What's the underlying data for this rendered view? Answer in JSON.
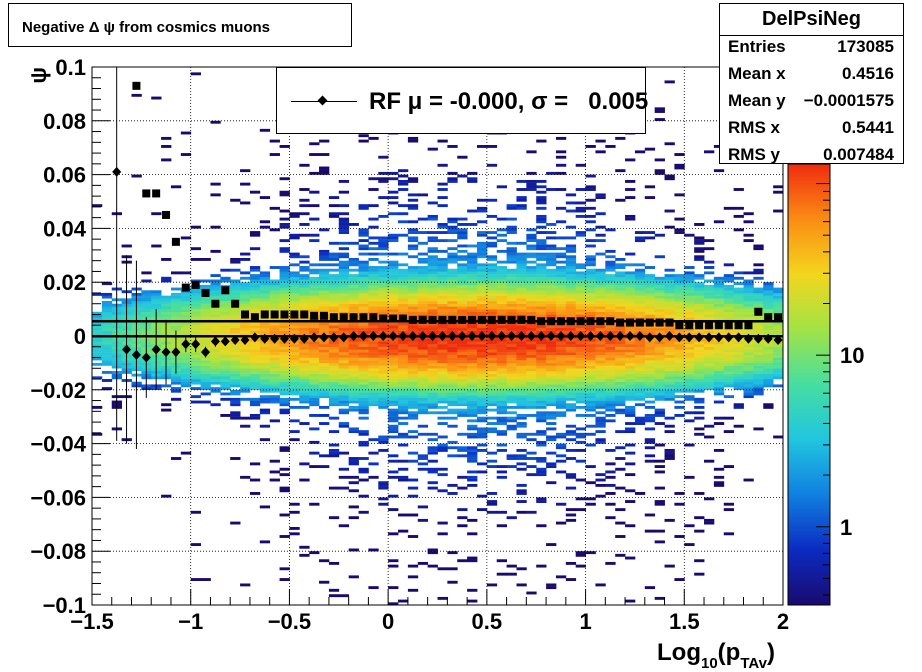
{
  "title": "Negative Δ ψ from cosmics muons",
  "stats": {
    "name": "DelPsiNeg",
    "rows": [
      {
        "key": "Entries",
        "value": "173085"
      },
      {
        "key": "Mean x",
        "value": "0.4516"
      },
      {
        "key": "Mean y",
        "value": "−0.0001575"
      },
      {
        "key": "RMS x",
        "value": "0.5441"
      },
      {
        "key": "RMS y",
        "value": "0.007484"
      }
    ]
  },
  "legend": {
    "label": "RF μ = -0.000, σ =   0.005"
  },
  "chart_data": {
    "type": "heatmap",
    "title": "Negative Δ ψ from cosmics muons",
    "xlabel": "Log10(pTAv)",
    "xlabel_parts": {
      "base": "Log",
      "sub1": "10",
      "open": "(p",
      "sub2": "TAv",
      "close": ")"
    },
    "ylabel": "ψ",
    "xlim": [
      -1.5,
      2
    ],
    "ylim": [
      -0.1,
      0.1
    ],
    "x_ticks": [
      "−1.5",
      "−1",
      "−0.5",
      "0",
      "0.5",
      "1",
      "1.5",
      "2"
    ],
    "x_tick_values": [
      -1.5,
      -1,
      -0.5,
      0,
      0.5,
      1,
      1.5,
      2
    ],
    "y_ticks": [
      "−0.1",
      "−0.08",
      "−0.06",
      "−0.04",
      "−0.02",
      "0",
      "0.02",
      "0.04",
      "0.06",
      "0.08",
      "0.1"
    ],
    "y_tick_values": [
      -0.1,
      -0.08,
      -0.06,
      -0.04,
      -0.02,
      0,
      0.02,
      0.04,
      0.06,
      0.08,
      0.1
    ],
    "grid": true,
    "z_scale": "log",
    "z_ticks": [
      "1",
      "10"
    ],
    "z_tick_values": [
      1,
      10
    ],
    "zlim": [
      0.35,
      130
    ],
    "density": {
      "x_mean": 0.4516,
      "x_rms": 0.5441,
      "y_mean": -0.0001575,
      "y_rms": 0.007484,
      "entries": 173085
    },
    "colors": {
      "palette": [
        "#1a0a6e",
        "#0b2bc0",
        "#1180e0",
        "#21c5df",
        "#46dea1",
        "#a2e344",
        "#f2d61e",
        "#fb8c14",
        "#ef2c0f"
      ]
    },
    "series": [
      {
        "name": "mean",
        "marker": "diamond",
        "points": [
          {
            "x": -1.375,
            "y": 0.061,
            "err": 0.1
          },
          {
            "x": -1.325,
            "y": -0.005,
            "err": 0.035
          },
          {
            "x": -1.275,
            "y": -0.007,
            "err": 0.035
          },
          {
            "x": -1.225,
            "y": -0.008,
            "err": 0.015
          },
          {
            "x": -1.175,
            "y": -0.005,
            "err": 0.015
          },
          {
            "x": -1.125,
            "y": -0.006,
            "err": 0.012
          },
          {
            "x": -1.075,
            "y": -0.006,
            "err": 0.008
          },
          {
            "x": -1.025,
            "y": -0.003,
            "err": 0.003
          },
          {
            "x": -0.975,
            "y": -0.003,
            "err": 0.003
          },
          {
            "x": -0.925,
            "y": -0.006,
            "err": 0.002
          },
          {
            "x": -0.875,
            "y": -0.002,
            "err": 0.002
          },
          {
            "x": -0.825,
            "y": -0.002,
            "err": 0.001
          },
          {
            "x": -0.775,
            "y": -0.0015,
            "err": 0.001
          },
          {
            "x": -0.725,
            "y": -0.0015,
            "err": 0.001
          },
          {
            "x": -0.675,
            "y": -0.0005,
            "err": 0.001
          },
          {
            "x": -0.625,
            "y": -0.001,
            "err": 0.001
          },
          {
            "x": -0.575,
            "y": -0.001,
            "err": 0.001
          },
          {
            "x": -0.525,
            "y": -0.001,
            "err": 0.001
          },
          {
            "x": -0.475,
            "y": -0.001,
            "err": 0.001
          },
          {
            "x": -0.425,
            "y": -0.001,
            "err": 0.001
          },
          {
            "x": -0.375,
            "y": -0.0005,
            "err": 0.001
          },
          {
            "x": -0.325,
            "y": -0.0005,
            "err": 0.001
          },
          {
            "x": -0.275,
            "y": -0.0005,
            "err": 0.001
          },
          {
            "x": -0.225,
            "y": -0.0005,
            "err": 0.001
          },
          {
            "x": -0.175,
            "y": 0,
            "err": 0.001
          },
          {
            "x": -0.125,
            "y": 0,
            "err": 0.001
          },
          {
            "x": -0.075,
            "y": 0,
            "err": 0.001
          },
          {
            "x": -0.025,
            "y": 0,
            "err": 0.001
          },
          {
            "x": 0.025,
            "y": 0,
            "err": 0.001
          },
          {
            "x": 0.075,
            "y": 0,
            "err": 0.001
          },
          {
            "x": 0.125,
            "y": 0,
            "err": 0.001
          },
          {
            "x": 0.175,
            "y": 0,
            "err": 0.001
          },
          {
            "x": 0.225,
            "y": 0,
            "err": 0.001
          },
          {
            "x": 0.275,
            "y": 0,
            "err": 0.001
          },
          {
            "x": 0.325,
            "y": 0,
            "err": 0.001
          },
          {
            "x": 0.375,
            "y": 0,
            "err": 0.001
          },
          {
            "x": 0.425,
            "y": 0,
            "err": 0.001
          },
          {
            "x": 0.475,
            "y": 0,
            "err": 0.001
          },
          {
            "x": 0.525,
            "y": 0,
            "err": 0.001
          },
          {
            "x": 0.575,
            "y": 0,
            "err": 0.001
          },
          {
            "x": 0.625,
            "y": 0,
            "err": 0.001
          },
          {
            "x": 0.675,
            "y": 0,
            "err": 0.001
          },
          {
            "x": 0.725,
            "y": 0,
            "err": 0.001
          },
          {
            "x": 0.775,
            "y": 0,
            "err": 0.001
          },
          {
            "x": 0.825,
            "y": 0,
            "err": 0.001
          },
          {
            "x": 0.875,
            "y": 0,
            "err": 0.001
          },
          {
            "x": 0.925,
            "y": 0,
            "err": 0.001
          },
          {
            "x": 0.975,
            "y": 0,
            "err": 0.001
          },
          {
            "x": 1.025,
            "y": 0,
            "err": 0.001
          },
          {
            "x": 1.075,
            "y": 0,
            "err": 0.001
          },
          {
            "x": 1.125,
            "y": 0,
            "err": 0.001
          },
          {
            "x": 1.175,
            "y": 0,
            "err": 0.001
          },
          {
            "x": 1.225,
            "y": 0,
            "err": 0.001
          },
          {
            "x": 1.275,
            "y": 0,
            "err": 0.001
          },
          {
            "x": 1.325,
            "y": -0.0005,
            "err": 0.001
          },
          {
            "x": 1.375,
            "y": -0.0005,
            "err": 0.001
          },
          {
            "x": 1.425,
            "y": 0,
            "err": 0.001
          },
          {
            "x": 1.475,
            "y": -0.0005,
            "err": 0.001
          },
          {
            "x": 1.525,
            "y": -0.0005,
            "err": 0.001
          },
          {
            "x": 1.575,
            "y": -0.0005,
            "err": 0.001
          },
          {
            "x": 1.625,
            "y": -0.0005,
            "err": 0.001
          },
          {
            "x": 1.675,
            "y": -0.0005,
            "err": 0.001
          },
          {
            "x": 1.725,
            "y": -0.0005,
            "err": 0.001
          },
          {
            "x": 1.775,
            "y": -0.0005,
            "err": 0.001
          },
          {
            "x": 1.825,
            "y": -0.001,
            "err": 0.001
          },
          {
            "x": 1.875,
            "y": -0.001,
            "err": 0.001
          },
          {
            "x": 1.925,
            "y": -0.001,
            "err": 0.001
          },
          {
            "x": 1.975,
            "y": -0.0015,
            "err": 0.001
          }
        ]
      },
      {
        "name": "sigma",
        "marker": "square",
        "points": [
          {
            "x": -1.275,
            "y": 0.093
          },
          {
            "x": -1.225,
            "y": 0.053
          },
          {
            "x": -1.175,
            "y": 0.053
          },
          {
            "x": -1.125,
            "y": 0.045
          },
          {
            "x": -1.075,
            "y": 0.035
          },
          {
            "x": -1.025,
            "y": 0.018
          },
          {
            "x": -0.975,
            "y": 0.019
          },
          {
            "x": -0.925,
            "y": 0.016
          },
          {
            "x": -0.875,
            "y": 0.012
          },
          {
            "x": -0.825,
            "y": 0.017
          },
          {
            "x": -0.775,
            "y": 0.012
          },
          {
            "x": -0.725,
            "y": 0.008
          },
          {
            "x": -0.675,
            "y": 0.007
          },
          {
            "x": -0.625,
            "y": 0.008
          },
          {
            "x": -0.575,
            "y": 0.008
          },
          {
            "x": -0.525,
            "y": 0.008
          },
          {
            "x": -0.475,
            "y": 0.008
          },
          {
            "x": -0.425,
            "y": 0.008
          },
          {
            "x": -0.375,
            "y": 0.0075
          },
          {
            "x": -0.325,
            "y": 0.0075
          },
          {
            "x": -0.275,
            "y": 0.007
          },
          {
            "x": -0.225,
            "y": 0.007
          },
          {
            "x": -0.175,
            "y": 0.007
          },
          {
            "x": -0.125,
            "y": 0.007
          },
          {
            "x": -0.075,
            "y": 0.007
          },
          {
            "x": -0.025,
            "y": 0.0065
          },
          {
            "x": 0.025,
            "y": 0.0065
          },
          {
            "x": 0.075,
            "y": 0.0065
          },
          {
            "x": 0.125,
            "y": 0.006
          },
          {
            "x": 0.175,
            "y": 0.006
          },
          {
            "x": 0.225,
            "y": 0.006
          },
          {
            "x": 0.275,
            "y": 0.006
          },
          {
            "x": 0.325,
            "y": 0.006
          },
          {
            "x": 0.375,
            "y": 0.006
          },
          {
            "x": 0.425,
            "y": 0.006
          },
          {
            "x": 0.475,
            "y": 0.006
          },
          {
            "x": 0.525,
            "y": 0.006
          },
          {
            "x": 0.575,
            "y": 0.006
          },
          {
            "x": 0.625,
            "y": 0.006
          },
          {
            "x": 0.675,
            "y": 0.006
          },
          {
            "x": 0.725,
            "y": 0.006
          },
          {
            "x": 0.775,
            "y": 0.0055
          },
          {
            "x": 0.825,
            "y": 0.0055
          },
          {
            "x": 0.875,
            "y": 0.0055
          },
          {
            "x": 0.925,
            "y": 0.0055
          },
          {
            "x": 0.975,
            "y": 0.0055
          },
          {
            "x": 1.025,
            "y": 0.0055
          },
          {
            "x": 1.075,
            "y": 0.0055
          },
          {
            "x": 1.125,
            "y": 0.0055
          },
          {
            "x": 1.175,
            "y": 0.005
          },
          {
            "x": 1.225,
            "y": 0.005
          },
          {
            "x": 1.275,
            "y": 0.005
          },
          {
            "x": 1.325,
            "y": 0.005
          },
          {
            "x": 1.375,
            "y": 0.005
          },
          {
            "x": 1.425,
            "y": 0.005
          },
          {
            "x": 1.475,
            "y": 0.004
          },
          {
            "x": 1.525,
            "y": 0.004
          },
          {
            "x": 1.575,
            "y": 0.004
          },
          {
            "x": 1.625,
            "y": 0.004
          },
          {
            "x": 1.675,
            "y": 0.004
          },
          {
            "x": 1.725,
            "y": 0.004
          },
          {
            "x": 1.775,
            "y": 0.004
          },
          {
            "x": 1.825,
            "y": 0.004
          },
          {
            "x": 1.875,
            "y": 0.009
          },
          {
            "x": 1.925,
            "y": 0.007
          },
          {
            "x": 1.975,
            "y": 0.007
          }
        ]
      }
    ],
    "fit_lines": [
      {
        "name": "mean-line",
        "y": -0.0001
      },
      {
        "name": "sigma-line",
        "y": 0.0055
      }
    ]
  }
}
